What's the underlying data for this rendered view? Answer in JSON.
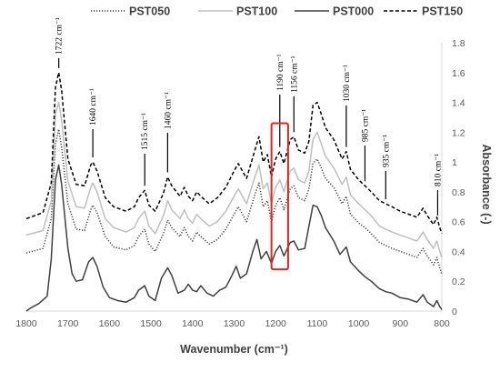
{
  "chart_data": {
    "type": "line",
    "xlabel": "Wavenumber (cm⁻¹)",
    "ylabel": "Absorbance (-)",
    "xlim": [
      1800,
      800
    ],
    "ylim": [
      0,
      1.8
    ],
    "x_ticks": [
      1800,
      1700,
      1600,
      1500,
      1400,
      1300,
      1200,
      1100,
      1000,
      900,
      800
    ],
    "y_ticks": [
      0,
      0.2,
      0.4,
      0.6,
      0.8,
      1,
      1.2,
      1.4,
      1.6,
      1.8
    ],
    "legend_position": "top",
    "grid": false,
    "series": [
      {
        "name": "PST050",
        "style": "dotted",
        "color": "#404040",
        "points": [
          [
            1800,
            0.39
          ],
          [
            1760,
            0.42
          ],
          [
            1740,
            0.62
          ],
          [
            1730,
            1.12
          ],
          [
            1722,
            1.22
          ],
          [
            1715,
            1.1
          ],
          [
            1700,
            0.72
          ],
          [
            1680,
            0.55
          ],
          [
            1660,
            0.54
          ],
          [
            1645,
            0.68
          ],
          [
            1640,
            0.71
          ],
          [
            1630,
            0.66
          ],
          [
            1610,
            0.5
          ],
          [
            1590,
            0.43
          ],
          [
            1560,
            0.41
          ],
          [
            1540,
            0.44
          ],
          [
            1530,
            0.5
          ],
          [
            1515,
            0.55
          ],
          [
            1505,
            0.45
          ],
          [
            1490,
            0.4
          ],
          [
            1470,
            0.52
          ],
          [
            1460,
            0.61
          ],
          [
            1450,
            0.56
          ],
          [
            1430,
            0.5
          ],
          [
            1420,
            0.56
          ],
          [
            1410,
            0.5
          ],
          [
            1400,
            0.47
          ],
          [
            1390,
            0.53
          ],
          [
            1380,
            0.5
          ],
          [
            1360,
            0.45
          ],
          [
            1340,
            0.48
          ],
          [
            1320,
            0.55
          ],
          [
            1300,
            0.65
          ],
          [
            1290,
            0.7
          ],
          [
            1270,
            0.6
          ],
          [
            1250,
            0.78
          ],
          [
            1240,
            0.86
          ],
          [
            1230,
            0.7
          ],
          [
            1220,
            0.74
          ],
          [
            1210,
            0.6
          ],
          [
            1200,
            0.71
          ],
          [
            1190,
            0.76
          ],
          [
            1180,
            0.68
          ],
          [
            1165,
            0.82
          ],
          [
            1156,
            0.84
          ],
          [
            1145,
            0.76
          ],
          [
            1130,
            0.74
          ],
          [
            1120,
            0.82
          ],
          [
            1110,
            0.99
          ],
          [
            1100,
            1.02
          ],
          [
            1090,
            0.96
          ],
          [
            1080,
            0.89
          ],
          [
            1060,
            0.83
          ],
          [
            1040,
            0.72
          ],
          [
            1030,
            0.77
          ],
          [
            1020,
            0.65
          ],
          [
            1000,
            0.59
          ],
          [
            985,
            0.56
          ],
          [
            970,
            0.52
          ],
          [
            950,
            0.46
          ],
          [
            935,
            0.44
          ],
          [
            920,
            0.42
          ],
          [
            900,
            0.4
          ],
          [
            880,
            0.38
          ],
          [
            860,
            0.36
          ],
          [
            845,
            0.42
          ],
          [
            835,
            0.37
          ],
          [
            820,
            0.31
          ],
          [
            812,
            0.36
          ],
          [
            805,
            0.29
          ],
          [
            800,
            0.25
          ]
        ]
      },
      {
        "name": "PST100",
        "style": "solid",
        "color": "#bfbfbf",
        "points": [
          [
            1800,
            0.51
          ],
          [
            1760,
            0.54
          ],
          [
            1740,
            0.74
          ],
          [
            1730,
            1.32
          ],
          [
            1722,
            1.4
          ],
          [
            1715,
            1.28
          ],
          [
            1700,
            0.87
          ],
          [
            1680,
            0.7
          ],
          [
            1660,
            0.69
          ],
          [
            1645,
            0.83
          ],
          [
            1640,
            0.86
          ],
          [
            1630,
            0.8
          ],
          [
            1610,
            0.62
          ],
          [
            1590,
            0.56
          ],
          [
            1560,
            0.53
          ],
          [
            1540,
            0.56
          ],
          [
            1530,
            0.62
          ],
          [
            1515,
            0.67
          ],
          [
            1505,
            0.57
          ],
          [
            1490,
            0.52
          ],
          [
            1470,
            0.64
          ],
          [
            1460,
            0.74
          ],
          [
            1450,
            0.68
          ],
          [
            1430,
            0.62
          ],
          [
            1420,
            0.68
          ],
          [
            1410,
            0.62
          ],
          [
            1400,
            0.59
          ],
          [
            1390,
            0.65
          ],
          [
            1380,
            0.62
          ],
          [
            1360,
            0.57
          ],
          [
            1340,
            0.6
          ],
          [
            1320,
            0.67
          ],
          [
            1300,
            0.77
          ],
          [
            1290,
            0.82
          ],
          [
            1270,
            0.72
          ],
          [
            1250,
            0.9
          ],
          [
            1240,
            0.98
          ],
          [
            1230,
            0.82
          ],
          [
            1220,
            0.86
          ],
          [
            1210,
            0.72
          ],
          [
            1200,
            0.83
          ],
          [
            1190,
            0.88
          ],
          [
            1180,
            0.8
          ],
          [
            1165,
            0.94
          ],
          [
            1156,
            0.96
          ],
          [
            1145,
            0.88
          ],
          [
            1130,
            0.86
          ],
          [
            1120,
            0.94
          ],
          [
            1110,
            1.15
          ],
          [
            1100,
            1.2
          ],
          [
            1090,
            1.12
          ],
          [
            1080,
            1.04
          ],
          [
            1060,
            0.96
          ],
          [
            1040,
            0.85
          ],
          [
            1030,
            0.9
          ],
          [
            1020,
            0.78
          ],
          [
            1000,
            0.72
          ],
          [
            985,
            0.68
          ],
          [
            970,
            0.64
          ],
          [
            950,
            0.57
          ],
          [
            935,
            0.55
          ],
          [
            920,
            0.53
          ],
          [
            900,
            0.51
          ],
          [
            880,
            0.49
          ],
          [
            860,
            0.47
          ],
          [
            845,
            0.53
          ],
          [
            835,
            0.48
          ],
          [
            820,
            0.42
          ],
          [
            812,
            0.47
          ],
          [
            805,
            0.4
          ],
          [
            800,
            0.36
          ]
        ]
      },
      {
        "name": "PST000",
        "style": "solid",
        "color": "#404040",
        "points": [
          [
            1800,
            0
          ],
          [
            1790,
            0.02
          ],
          [
            1770,
            0.05
          ],
          [
            1750,
            0.1
          ],
          [
            1740,
            0.35
          ],
          [
            1730,
            0.88
          ],
          [
            1722,
            0.98
          ],
          [
            1715,
            0.85
          ],
          [
            1700,
            0.42
          ],
          [
            1690,
            0.25
          ],
          [
            1680,
            0.2
          ],
          [
            1665,
            0.21
          ],
          [
            1650,
            0.33
          ],
          [
            1640,
            0.36
          ],
          [
            1630,
            0.3
          ],
          [
            1615,
            0.16
          ],
          [
            1600,
            0.09
          ],
          [
            1580,
            0.07
          ],
          [
            1560,
            0.06
          ],
          [
            1540,
            0.09
          ],
          [
            1530,
            0.14
          ],
          [
            1515,
            0.17
          ],
          [
            1505,
            0.1
          ],
          [
            1490,
            0.07
          ],
          [
            1475,
            0.22
          ],
          [
            1460,
            0.29
          ],
          [
            1450,
            0.24
          ],
          [
            1435,
            0.12
          ],
          [
            1420,
            0.14
          ],
          [
            1410,
            0.18
          ],
          [
            1400,
            0.14
          ],
          [
            1390,
            0.13
          ],
          [
            1380,
            0.17
          ],
          [
            1365,
            0.12
          ],
          [
            1350,
            0.1
          ],
          [
            1335,
            0.14
          ],
          [
            1320,
            0.16
          ],
          [
            1305,
            0.24
          ],
          [
            1295,
            0.3
          ],
          [
            1285,
            0.22
          ],
          [
            1270,
            0.25
          ],
          [
            1255,
            0.4
          ],
          [
            1245,
            0.48
          ],
          [
            1235,
            0.35
          ],
          [
            1222,
            0.4
          ],
          [
            1210,
            0.32
          ],
          [
            1200,
            0.4
          ],
          [
            1190,
            0.44
          ],
          [
            1180,
            0.37
          ],
          [
            1165,
            0.46
          ],
          [
            1156,
            0.47
          ],
          [
            1145,
            0.41
          ],
          [
            1130,
            0.42
          ],
          [
            1120,
            0.57
          ],
          [
            1110,
            0.71
          ],
          [
            1100,
            0.7
          ],
          [
            1090,
            0.64
          ],
          [
            1080,
            0.56
          ],
          [
            1060,
            0.47
          ],
          [
            1045,
            0.38
          ],
          [
            1030,
            0.43
          ],
          [
            1020,
            0.33
          ],
          [
            1000,
            0.27
          ],
          [
            985,
            0.23
          ],
          [
            970,
            0.2
          ],
          [
            950,
            0.15
          ],
          [
            935,
            0.13
          ],
          [
            920,
            0.12
          ],
          [
            900,
            0.09
          ],
          [
            880,
            0.08
          ],
          [
            860,
            0.06
          ],
          [
            845,
            0.11
          ],
          [
            835,
            0.06
          ],
          [
            820,
            0.03
          ],
          [
            812,
            0.07
          ],
          [
            805,
            0.03
          ],
          [
            800,
            0.01
          ]
        ]
      },
      {
        "name": "PST150",
        "style": "dashed",
        "color": "#000000",
        "points": [
          [
            1800,
            0.62
          ],
          [
            1760,
            0.66
          ],
          [
            1740,
            0.86
          ],
          [
            1730,
            1.5
          ],
          [
            1722,
            1.6
          ],
          [
            1715,
            1.48
          ],
          [
            1700,
            1.02
          ],
          [
            1680,
            0.85
          ],
          [
            1660,
            0.84
          ],
          [
            1645,
            0.98
          ],
          [
            1640,
            1.0
          ],
          [
            1630,
            0.94
          ],
          [
            1610,
            0.76
          ],
          [
            1590,
            0.7
          ],
          [
            1560,
            0.67
          ],
          [
            1540,
            0.7
          ],
          [
            1530,
            0.76
          ],
          [
            1515,
            0.81
          ],
          [
            1505,
            0.71
          ],
          [
            1490,
            0.67
          ],
          [
            1470,
            0.79
          ],
          [
            1460,
            0.9
          ],
          [
            1450,
            0.84
          ],
          [
            1430,
            0.77
          ],
          [
            1420,
            0.83
          ],
          [
            1410,
            0.77
          ],
          [
            1400,
            0.74
          ],
          [
            1390,
            0.8
          ],
          [
            1380,
            0.77
          ],
          [
            1360,
            0.72
          ],
          [
            1340,
            0.76
          ],
          [
            1320,
            0.83
          ],
          [
            1300,
            0.94
          ],
          [
            1290,
            0.99
          ],
          [
            1270,
            0.89
          ],
          [
            1250,
            1.08
          ],
          [
            1240,
            1.17
          ],
          [
            1230,
            1.0
          ],
          [
            1220,
            1.05
          ],
          [
            1210,
            0.9
          ],
          [
            1200,
            1.02
          ],
          [
            1190,
            1.07
          ],
          [
            1180,
            0.99
          ],
          [
            1165,
            1.15
          ],
          [
            1156,
            1.17
          ],
          [
            1145,
            1.08
          ],
          [
            1130,
            1.06
          ],
          [
            1120,
            1.14
          ],
          [
            1110,
            1.38
          ],
          [
            1100,
            1.4
          ],
          [
            1090,
            1.32
          ],
          [
            1080,
            1.23
          ],
          [
            1060,
            1.15
          ],
          [
            1040,
            1.02
          ],
          [
            1030,
            1.07
          ],
          [
            1020,
            0.95
          ],
          [
            1000,
            0.88
          ],
          [
            985,
            0.84
          ],
          [
            970,
            0.8
          ],
          [
            950,
            0.74
          ],
          [
            935,
            0.72
          ],
          [
            920,
            0.7
          ],
          [
            900,
            0.67
          ],
          [
            880,
            0.65
          ],
          [
            860,
            0.63
          ],
          [
            845,
            0.69
          ],
          [
            835,
            0.64
          ],
          [
            820,
            0.58
          ],
          [
            812,
            0.63
          ],
          [
            805,
            0.56
          ],
          [
            800,
            0.52
          ]
        ]
      }
    ],
    "annotations": [
      {
        "text": "1722 cm⁻¹",
        "x": 1722
      },
      {
        "text": "1640 cm⁻¹",
        "x": 1640
      },
      {
        "text": "1515 cm⁻¹",
        "x": 1515
      },
      {
        "text": "1460 cm⁻¹",
        "x": 1460
      },
      {
        "text": "1190 cm⁻¹",
        "x": 1190
      },
      {
        "text": "1156 cm⁻¹",
        "x": 1156
      },
      {
        "text": "1030 cm⁻¹",
        "x": 1030
      },
      {
        "text": "985 cm⁻¹",
        "x": 985
      },
      {
        "text": "935 cm⁻¹",
        "x": 935
      },
      {
        "text": "810 cm⁻¹",
        "x": 810
      }
    ],
    "highlight_box": {
      "x_range": [
        1210,
        1170
      ],
      "y_range": [
        0.28,
        1.26
      ],
      "color": "#e8231b"
    }
  }
}
